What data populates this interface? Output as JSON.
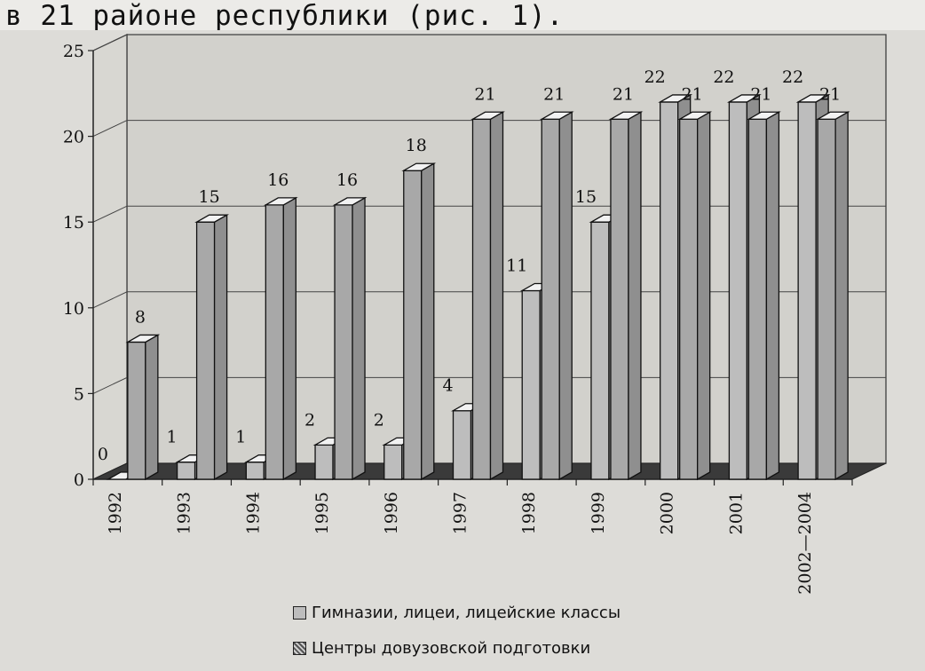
{
  "heading": "в 21 районе республики (рис. 1).",
  "chart_data": {
    "type": "bar",
    "categories": [
      "1992",
      "1993",
      "1994",
      "1995",
      "1996",
      "1997",
      "1998",
      "1999",
      "2000",
      "2001",
      "2002—2004"
    ],
    "series": [
      {
        "name": "Гимназии, лицеи, лицейские классы",
        "values": [
          0,
          1,
          1,
          2,
          2,
          4,
          11,
          15,
          22,
          22,
          22
        ],
        "color": "#bdbdbd"
      },
      {
        "name": "Центры довузовской подготовки",
        "values": [
          8,
          15,
          16,
          16,
          18,
          21,
          21,
          21,
          21,
          21,
          21
        ],
        "color": "#a8a8a8"
      }
    ],
    "ylim": [
      0,
      25
    ],
    "yticks": [
      0,
      5,
      10,
      15,
      20,
      25
    ],
    "grid": true,
    "legend_position": "bottom"
  }
}
